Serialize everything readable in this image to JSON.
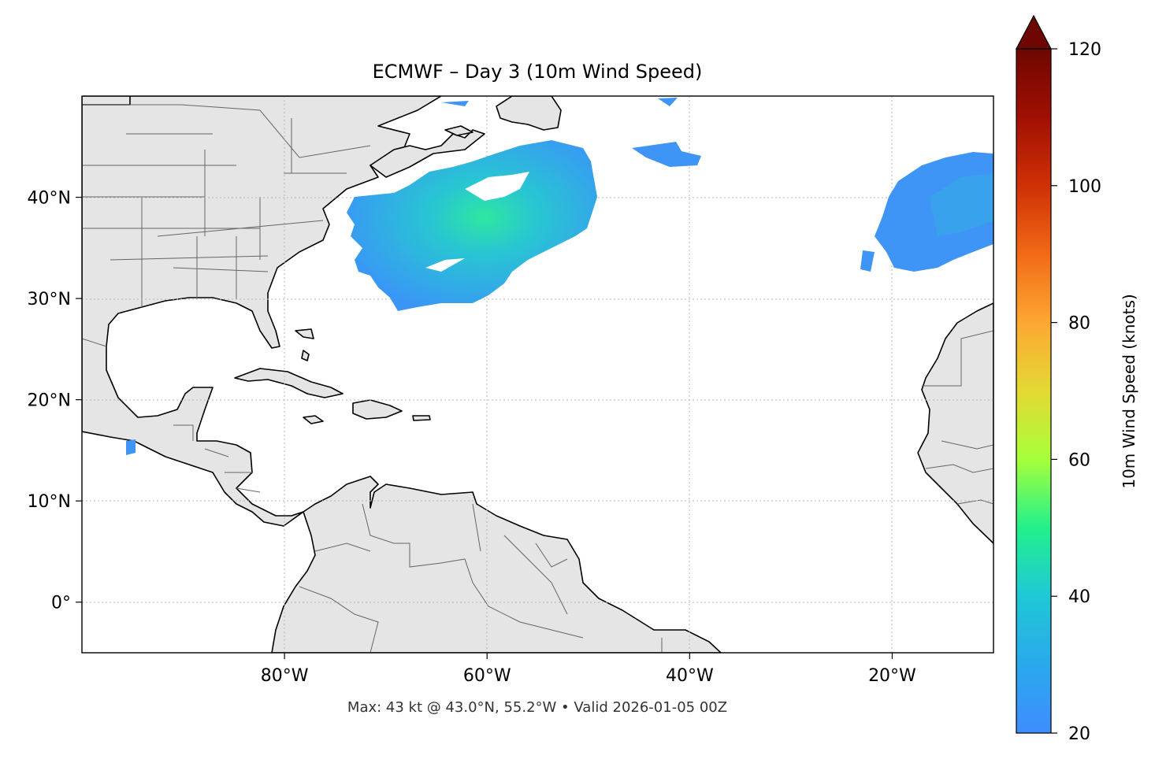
{
  "title": "ECMWF – Day 3 (10m Wind Speed)",
  "footer": "Max: 43 kt @ 43.0°N, 55.2°W • Valid 2026-01-05 00Z",
  "map": {
    "lon_range": [
      -100,
      -10
    ],
    "lat_range": [
      -5,
      50
    ],
    "lon_ticks": [
      {
        "value": -80,
        "label": "80°W"
      },
      {
        "value": -60,
        "label": "60°W"
      },
      {
        "value": -40,
        "label": "40°W"
      },
      {
        "value": -20,
        "label": "20°W"
      }
    ],
    "lat_ticks": [
      {
        "value": 40,
        "label": "40°N"
      },
      {
        "value": 30,
        "label": "30°N"
      },
      {
        "value": 20,
        "label": "20°N"
      },
      {
        "value": 10,
        "label": "10°N"
      },
      {
        "value": 0,
        "label": "0°"
      }
    ],
    "gridlines": "dotted",
    "land_color": "#e5e5e5",
    "ocean_color": "#ffffff"
  },
  "colorbar": {
    "label": "10m Wind Speed (knots)",
    "min": 20,
    "max": 120,
    "ticks": [
      {
        "value": 20,
        "label": "20"
      },
      {
        "value": 40,
        "label": "40"
      },
      {
        "value": 60,
        "label": "60"
      },
      {
        "value": 80,
        "label": "80"
      },
      {
        "value": 100,
        "label": "100"
      },
      {
        "value": 120,
        "label": "120"
      }
    ],
    "extend": "max",
    "colormap": "turbo",
    "colors": [
      "#3f8cff",
      "#1fc8d6",
      "#22f08c",
      "#a6ff3a",
      "#e4d934",
      "#fda832",
      "#f26a16",
      "#cf3006",
      "#a01002",
      "#6e0602"
    ]
  },
  "wind_regions": [
    {
      "name": "central-atlantic",
      "max_kt": 43,
      "peak_lat": 43.0,
      "peak_lon": -55.2
    },
    {
      "name": "eastern-atlantic"
    },
    {
      "name": "north-atlantic-fragment"
    }
  ]
}
